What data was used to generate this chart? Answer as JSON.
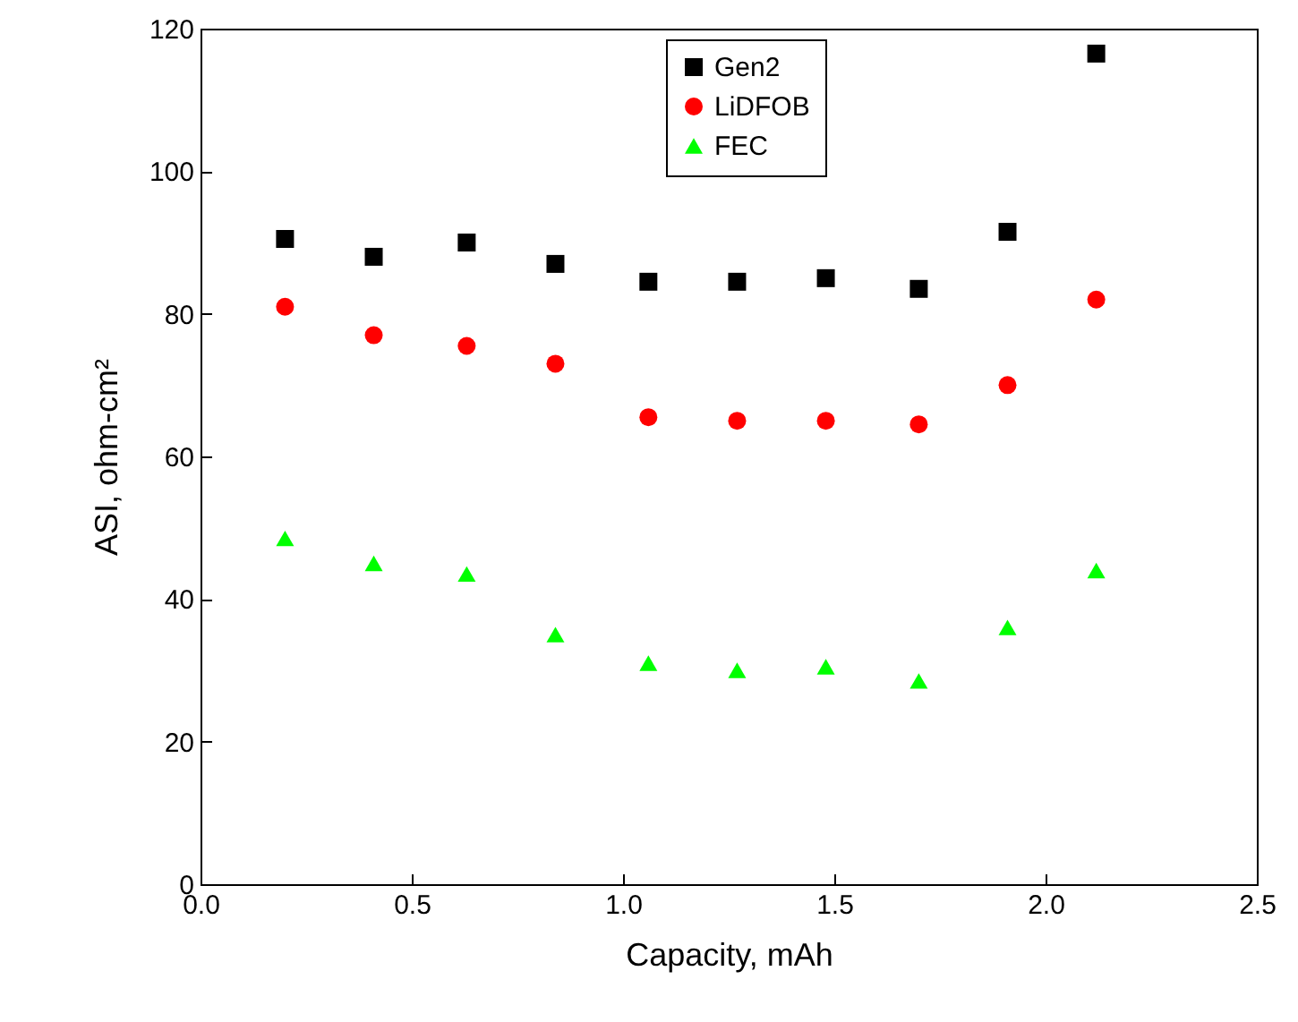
{
  "chart_data": {
    "type": "scatter",
    "xlabel": "Capacity, mAh",
    "ylabel": "ASI, ohm-cm²",
    "x": [
      0.2,
      0.41,
      0.63,
      0.84,
      1.06,
      1.27,
      1.48,
      1.7,
      1.91,
      2.12
    ],
    "series": [
      {
        "name": "Gen2",
        "color": "#000000",
        "marker": "square",
        "values": [
          90.5,
          88,
          90,
          87,
          84.5,
          84.5,
          85,
          83.5,
          91.5,
          116.5
        ]
      },
      {
        "name": "LiDFOB",
        "color": "#ff0000",
        "marker": "circle",
        "values": [
          81,
          77,
          75.5,
          73,
          65.5,
          65,
          65,
          64.5,
          70,
          82
        ]
      },
      {
        "name": "FEC",
        "color": "#00ff00",
        "marker": "triangle",
        "values": [
          48.5,
          45,
          43.5,
          35,
          31,
          30,
          30.5,
          28.5,
          36,
          44
        ]
      }
    ],
    "xlim": [
      0,
      2.5
    ],
    "xticks": [
      {
        "value": 0,
        "label": "0.0"
      },
      {
        "value": 0.5,
        "label": "0.5"
      },
      {
        "value": 1,
        "label": "1.0"
      },
      {
        "value": 1.5,
        "label": "1.5"
      },
      {
        "value": 2,
        "label": "2.0"
      },
      {
        "value": 2.5,
        "label": "2.5"
      }
    ],
    "ylim": [
      0,
      120
    ],
    "yticks": [
      0,
      20,
      40,
      60,
      80,
      100,
      120
    ],
    "legend": "top",
    "grid": false
  }
}
